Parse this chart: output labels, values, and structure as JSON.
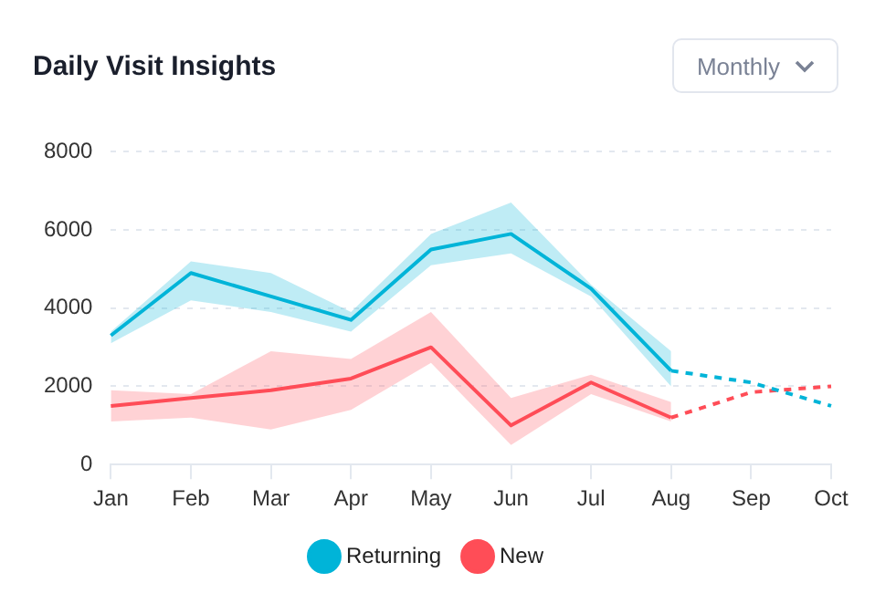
{
  "chart_data": {
    "type": "line",
    "title": "Daily Visit Insights",
    "annotations": [
      "Monthly"
    ],
    "categories": [
      "Jan",
      "Feb",
      "Mar",
      "Apr",
      "May",
      "Jun",
      "Jul",
      "Aug",
      "Sep",
      "Oct"
    ],
    "series": [
      {
        "name": "Returning",
        "color": "#00b4d8",
        "values": [
          3300,
          4900,
          4300,
          3700,
          5500,
          5900,
          4500,
          2400,
          null,
          null
        ],
        "lower": [
          3100,
          4200,
          3900,
          3400,
          5100,
          5400,
          4300,
          2000,
          null,
          null
        ],
        "upper": [
          3400,
          5200,
          4900,
          3900,
          5900,
          6700,
          4600,
          2900,
          null,
          null
        ]
      },
      {
        "name": "New",
        "color": "#ff4d57",
        "values": [
          1500,
          1700,
          1900,
          2200,
          3000,
          1000,
          2100,
          1200,
          null,
          null
        ],
        "lower": [
          1100,
          1200,
          900,
          1400,
          2600,
          500,
          1800,
          1100,
          null,
          null
        ],
        "upper": [
          1900,
          1800,
          2900,
          2700,
          3900,
          1700,
          2300,
          1600,
          null,
          null
        ]
      },
      {
        "color": "#00b4d8",
        "line_style": "dashed",
        "values": [
          null,
          null,
          null,
          null,
          null,
          null,
          null,
          2400,
          2100,
          1500
        ]
      },
      {
        "color": "#ff4d57",
        "line_style": "dashed",
        "values": [
          null,
          null,
          null,
          null,
          null,
          null,
          null,
          1200,
          1850,
          2000
        ]
      }
    ],
    "ylim": [
      0,
      8000
    ],
    "yticks": [
      0,
      2000,
      4000,
      6000,
      8000
    ],
    "grid": "y",
    "legend": "bottom"
  }
}
